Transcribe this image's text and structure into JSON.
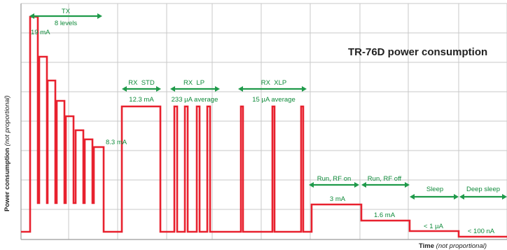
{
  "title": "TR-76D power consumption",
  "y_axis_label": "Power consumption",
  "y_axis_note": "(not proportional)",
  "x_axis_label": "Time",
  "x_axis_note": "(not proportional)",
  "colors": {
    "trace": "#e8212e",
    "annotation": "#1f9a4a",
    "grid": "#c8c8c8",
    "text": "#222222"
  },
  "phases": [
    {
      "id": "tx",
      "name": "TX",
      "sub": "8 levels",
      "values": [
        "19 mA",
        "8.3 mA"
      ]
    },
    {
      "id": "rx-std",
      "name": "RX  STD",
      "value": "12.3 mA"
    },
    {
      "id": "rx-lp",
      "name": "RX  LP",
      "value": "233 µA average"
    },
    {
      "id": "rx-xlp",
      "name": "RX  XLP",
      "value": "15 µA average"
    },
    {
      "id": "run-rf-on",
      "name": "Run, RF on",
      "value": "3 mA"
    },
    {
      "id": "run-rf-off",
      "name": "Run, RF off",
      "value": "1.6 mA"
    },
    {
      "id": "sleep",
      "name": "Sleep",
      "value": "< 1 µA"
    },
    {
      "id": "deep-sleep",
      "name": "Deep sleep",
      "value": "< 100 nA"
    }
  ]
}
